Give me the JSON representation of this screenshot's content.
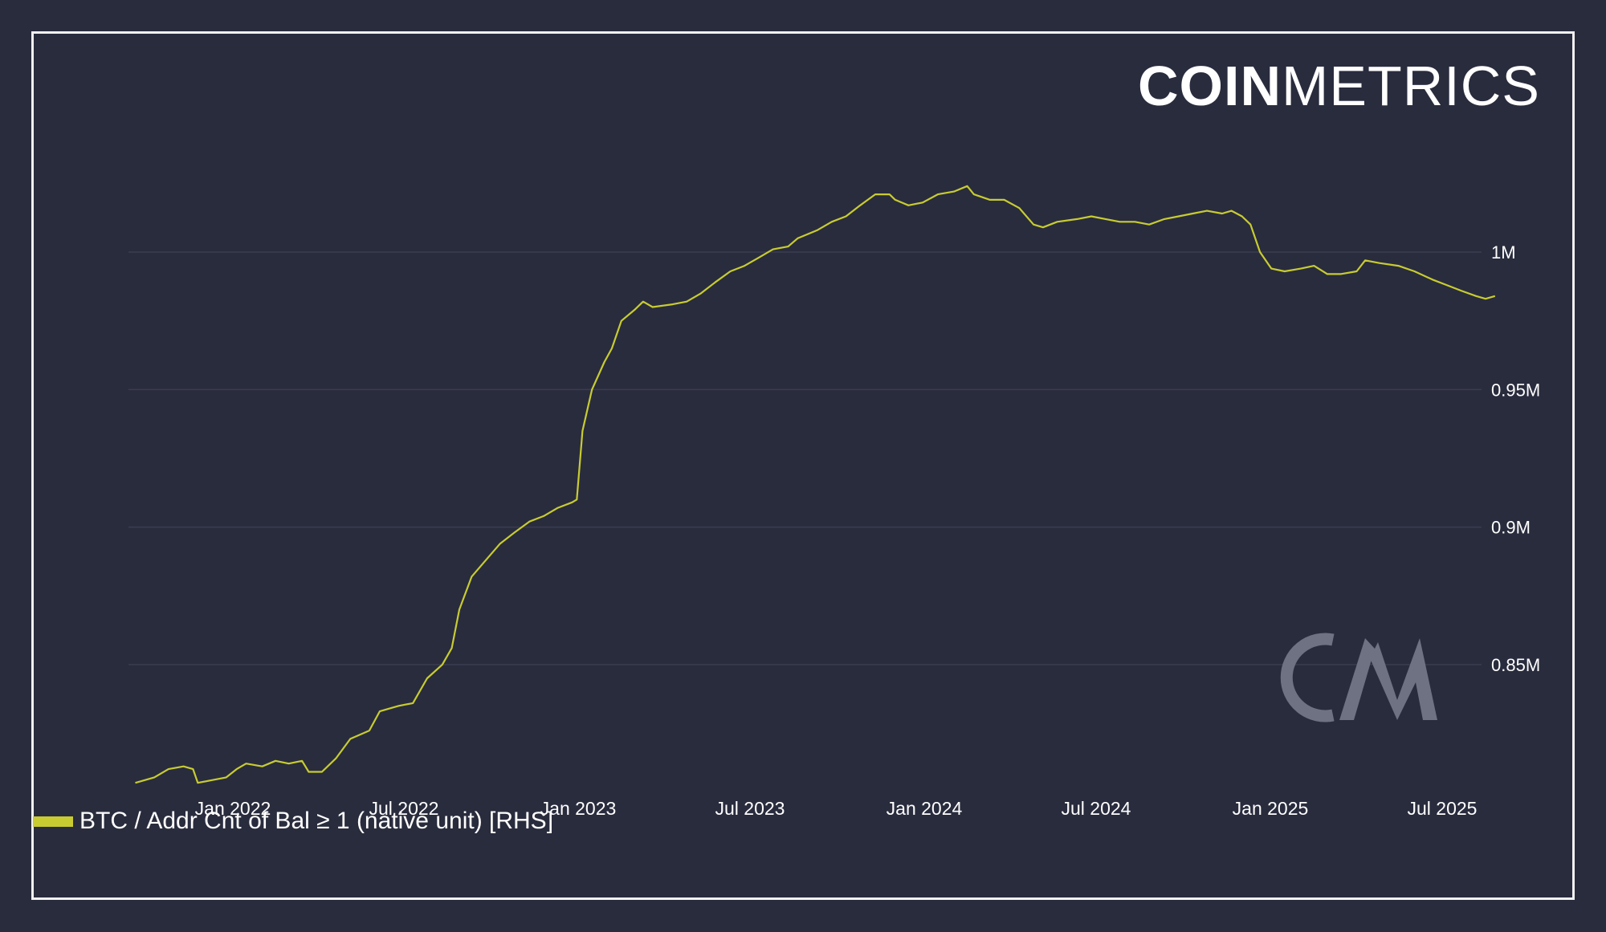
{
  "logo": {
    "bold": "COIN",
    "thin": "METRICS",
    "watermark": "CM"
  },
  "colors": {
    "background": "#292c3d",
    "frame": "#f2f2f4",
    "series": "#c8cc30",
    "grid": "#3a3d50",
    "text": "#ffffff",
    "watermark": "#6f7282"
  },
  "legend": {
    "label": "BTC / Addr Cnt of Bal ≥ 1 (native unit) [RHS]"
  },
  "chart_data": {
    "type": "line",
    "title": "",
    "xlabel": "",
    "ylabel": "",
    "y_axis_side": "right",
    "grid": "horizontal",
    "legend_position": "bottom-left",
    "ylim": [
      0.807,
      1.03
    ],
    "y_ticks": [
      {
        "label": "1M",
        "value": 1.0
      },
      {
        "label": "0.95M",
        "value": 0.95
      },
      {
        "label": "0.9M",
        "value": 0.9
      },
      {
        "label": "0.85M",
        "value": 0.85
      }
    ],
    "x_ticks": [
      "Jan 2022",
      "Jul 2022",
      "Jan 2023",
      "Jul 2023",
      "Jan 2024",
      "Jul 2024",
      "Jan 2025",
      "Jul 2025"
    ],
    "series": [
      {
        "name": "BTC / Addr Cnt of Bal ≥ 1 (native unit) [RHS]",
        "unit": "M",
        "points": [
          [
            "2021-09-20",
            0.807
          ],
          [
            "2021-10-10",
            0.809
          ],
          [
            "2021-10-25",
            0.812
          ],
          [
            "2021-11-10",
            0.813
          ],
          [
            "2021-11-20",
            0.812
          ],
          [
            "2021-11-25",
            0.807
          ],
          [
            "2021-12-10",
            0.808
          ],
          [
            "2021-12-25",
            0.809
          ],
          [
            "2022-01-05",
            0.812
          ],
          [
            "2022-01-15",
            0.814
          ],
          [
            "2022-02-01",
            0.813
          ],
          [
            "2022-02-15",
            0.815
          ],
          [
            "2022-03-01",
            0.814
          ],
          [
            "2022-03-15",
            0.815
          ],
          [
            "2022-03-22",
            0.811
          ],
          [
            "2022-04-05",
            0.811
          ],
          [
            "2022-04-20",
            0.816
          ],
          [
            "2022-05-05",
            0.823
          ],
          [
            "2022-05-25",
            0.826
          ],
          [
            "2022-06-05",
            0.833
          ],
          [
            "2022-06-25",
            0.835
          ],
          [
            "2022-07-10",
            0.836
          ],
          [
            "2022-07-25",
            0.845
          ],
          [
            "2022-08-10",
            0.85
          ],
          [
            "2022-08-20",
            0.856
          ],
          [
            "2022-08-28",
            0.87
          ],
          [
            "2022-09-10",
            0.882
          ],
          [
            "2022-09-25",
            0.888
          ],
          [
            "2022-10-10",
            0.894
          ],
          [
            "2022-10-25",
            0.898
          ],
          [
            "2022-11-10",
            0.902
          ],
          [
            "2022-11-25",
            0.904
          ],
          [
            "2022-12-10",
            0.907
          ],
          [
            "2022-12-25",
            0.909
          ],
          [
            "2022-12-30",
            0.91
          ],
          [
            "2023-01-05",
            0.935
          ],
          [
            "2023-01-15",
            0.95
          ],
          [
            "2023-01-28",
            0.96
          ],
          [
            "2023-02-05",
            0.965
          ],
          [
            "2023-02-15",
            0.975
          ],
          [
            "2023-03-01",
            0.979
          ],
          [
            "2023-03-10",
            0.982
          ],
          [
            "2023-03-20",
            0.98
          ],
          [
            "2023-04-10",
            0.981
          ],
          [
            "2023-04-25",
            0.982
          ],
          [
            "2023-05-10",
            0.985
          ],
          [
            "2023-05-25",
            0.989
          ],
          [
            "2023-06-10",
            0.993
          ],
          [
            "2023-06-25",
            0.995
          ],
          [
            "2023-07-10",
            0.998
          ],
          [
            "2023-07-25",
            1.001
          ],
          [
            "2023-08-10",
            1.002
          ],
          [
            "2023-08-20",
            1.005
          ],
          [
            "2023-09-10",
            1.008
          ],
          [
            "2023-09-25",
            1.011
          ],
          [
            "2023-10-10",
            1.013
          ],
          [
            "2023-10-25",
            1.017
          ],
          [
            "2023-11-10",
            1.021
          ],
          [
            "2023-11-25",
            1.021
          ],
          [
            "2023-12-01",
            1.019
          ],
          [
            "2023-12-15",
            1.017
          ],
          [
            "2023-12-30",
            1.018
          ],
          [
            "2024-01-15",
            1.021
          ],
          [
            "2024-02-01",
            1.022
          ],
          [
            "2024-02-15",
            1.024
          ],
          [
            "2024-02-22",
            1.021
          ],
          [
            "2024-03-10",
            1.019
          ],
          [
            "2024-03-25",
            1.019
          ],
          [
            "2024-04-10",
            1.016
          ],
          [
            "2024-04-25",
            1.01
          ],
          [
            "2024-05-05",
            1.009
          ],
          [
            "2024-05-20",
            1.011
          ],
          [
            "2024-06-10",
            1.012
          ],
          [
            "2024-06-25",
            1.013
          ],
          [
            "2024-07-10",
            1.012
          ],
          [
            "2024-07-25",
            1.011
          ],
          [
            "2024-08-10",
            1.011
          ],
          [
            "2024-08-25",
            1.01
          ],
          [
            "2024-09-10",
            1.012
          ],
          [
            "2024-09-25",
            1.013
          ],
          [
            "2024-10-10",
            1.014
          ],
          [
            "2024-10-25",
            1.015
          ],
          [
            "2024-11-10",
            1.014
          ],
          [
            "2024-11-20",
            1.015
          ],
          [
            "2024-12-01",
            1.013
          ],
          [
            "2024-12-10",
            1.01
          ],
          [
            "2024-12-20",
            1.0
          ],
          [
            "2025-01-01",
            0.994
          ],
          [
            "2025-01-15",
            0.993
          ],
          [
            "2025-02-01",
            0.994
          ],
          [
            "2025-02-15",
            0.995
          ],
          [
            "2025-03-01",
            0.992
          ],
          [
            "2025-03-15",
            0.992
          ],
          [
            "2025-04-01",
            0.993
          ],
          [
            "2025-04-10",
            0.997
          ],
          [
            "2025-04-25",
            0.996
          ],
          [
            "2025-05-15",
            0.995
          ],
          [
            "2025-06-01",
            0.993
          ],
          [
            "2025-06-20",
            0.99
          ],
          [
            "2025-07-05",
            0.988
          ],
          [
            "2025-07-20",
            0.986
          ],
          [
            "2025-08-05",
            0.984
          ],
          [
            "2025-08-15",
            0.983
          ],
          [
            "2025-08-25",
            0.984
          ]
        ]
      }
    ]
  }
}
